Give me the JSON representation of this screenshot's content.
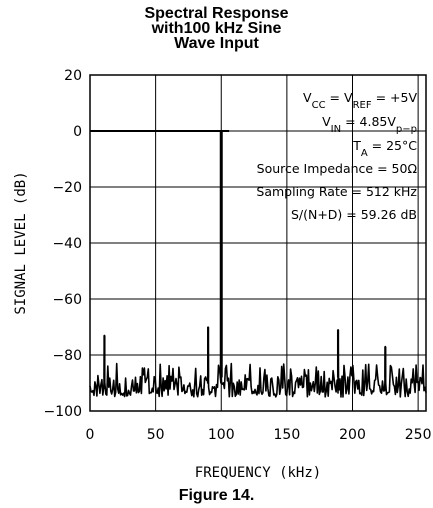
{
  "chart_data": {
    "type": "line",
    "title_lines": [
      "Spectral Response",
      "with100 kHz Sine",
      "Wave Input"
    ],
    "xlabel": "FREQUENCY (kHz)",
    "ylabel": "SIGNAL LEVEL (dB)",
    "xlim": [
      0,
      256
    ],
    "ylim": [
      -100,
      20
    ],
    "x_ticks": [
      "0",
      "50",
      "100",
      "150",
      "200",
      "250"
    ],
    "x_tick_values": [
      0,
      50,
      100,
      150,
      200,
      250
    ],
    "y_ticks": [
      "20",
      "0",
      "−20",
      "−40",
      "−60",
      "−80",
      "−100"
    ],
    "y_tick_values": [
      20,
      0,
      -20,
      -40,
      -60,
      -80,
      -100
    ],
    "grid": true,
    "reference_line": {
      "y": 0,
      "x_start": 0,
      "x_end": 106
    },
    "series": [
      {
        "peaks": [
          {
            "x": 11,
            "y": -73
          },
          {
            "x": 90,
            "y": -70
          },
          {
            "x": 100,
            "y": 0
          },
          {
            "x": 189,
            "y": -71
          },
          {
            "x": 225,
            "y": -77
          }
        ],
        "noise_floor_range": [
          -95,
          -83
        ]
      }
    ],
    "annotations": [
      {
        "lines": [
          "V",
          "CC",
          " = V",
          "REF",
          " = +5V"
        ]
      },
      {
        "lines": [
          "V",
          "IN",
          " = 4.85V",
          "p−p",
          ""
        ]
      },
      {
        "lines": [
          "T",
          "A",
          " = 25°C",
          "",
          ""
        ]
      },
      {
        "lines": [
          "Source Impedance = 50Ω",
          "",
          "",
          "",
          ""
        ]
      },
      {
        "lines": [
          "Sampling Rate = 512 kHz",
          "",
          "",
          "",
          ""
        ]
      },
      {
        "lines": [
          "S/(N+D) = 59.26 dB",
          "",
          "",
          "",
          ""
        ]
      }
    ],
    "caption": "Figure 14."
  }
}
